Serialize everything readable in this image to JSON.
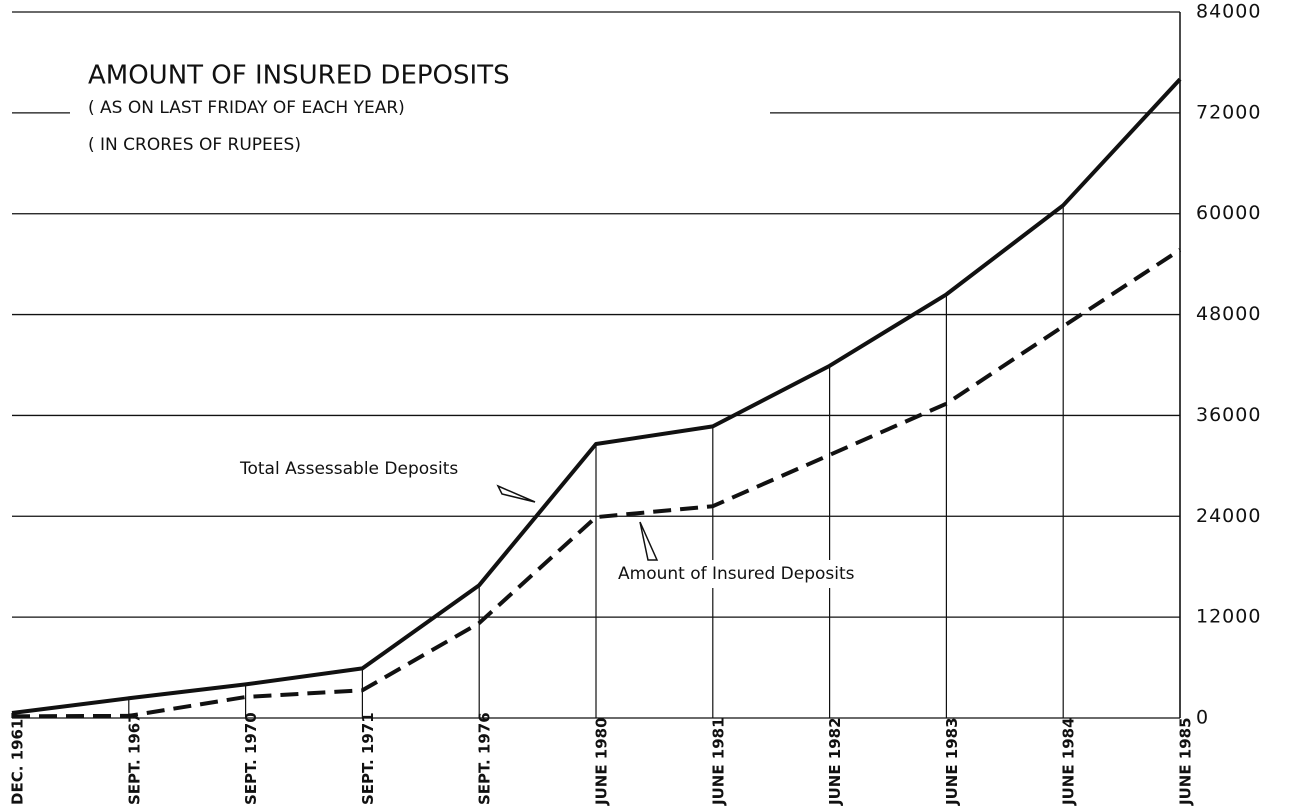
{
  "chart_data": {
    "type": "line",
    "title": "AMOUNT OF INSURED DEPOSITS",
    "subtitle": "( AS ON LAST FRIDAY OF EACH YEAR)",
    "units": "( IN CRORES OF RUPEES)",
    "annotations": [
      "Total Assessable Deposits",
      "Amount of Insured Deposits"
    ],
    "categories": [
      "DEC. 1961",
      "SEPT. 1967",
      "SEPT. 1970",
      "SEPT. 1971",
      "SEPT. 1976",
      "JUNE 1980",
      "JUNE 1981",
      "JUNE 1982",
      "JUNE 1983",
      "JUNE 1984",
      "JUNE 1985"
    ],
    "series": [
      {
        "name": "Total Assessable Deposits",
        "color": "#111111",
        "dashed": false,
        "values": [
          600,
          2350,
          4000,
          5900,
          15800,
          32600,
          34700,
          41900,
          50400,
          61000,
          76000
        ]
      },
      {
        "name": "Amount of Insured Deposits",
        "color": "#111111",
        "dashed": true,
        "values": [
          200,
          250,
          2500,
          3300,
          11300,
          23900,
          25200,
          31300,
          37400,
          46600,
          55700
        ]
      }
    ],
    "ylim": [
      0,
      84000
    ],
    "yticks": [
      0,
      12000,
      24000,
      36000,
      48000,
      60000,
      72000,
      84000
    ],
    "grid": true
  }
}
